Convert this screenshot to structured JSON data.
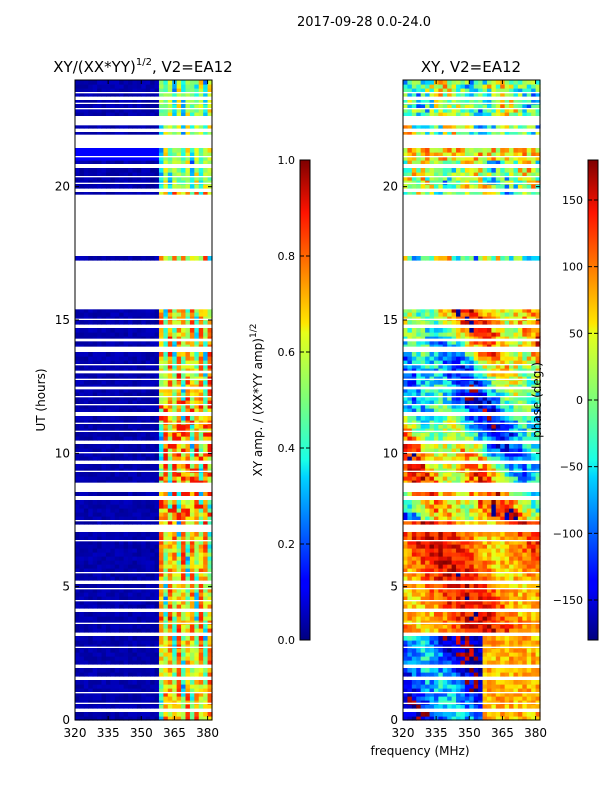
{
  "chart_data": {
    "type": "heatmap",
    "suptitle": "2017-09-28 0.0-24.0",
    "xlabel": "frequency (MHz)",
    "panels": [
      {
        "title": "XY/(XX*YY)^1/2, V2=EA12",
        "title_base": "XY/(XX*YY)",
        "title_sup": "1/2",
        "title_tail": ", V2=EA12",
        "ylabel": "UT (hours)",
        "xlim": [
          320,
          382
        ],
        "ylim": [
          0,
          24
        ],
        "xticks": [
          320,
          335,
          350,
          365,
          380
        ],
        "yticks": [
          0,
          5,
          10,
          15,
          20
        ],
        "quantity": "normalized XY amplitude",
        "colorbar": {
          "label": "XY amp. / (XX*YY amp)^1/2",
          "label_base": "XY amp. / (XX*YY amp)",
          "label_sup": "1/2",
          "vmin": 0.0,
          "vmax": 1.0,
          "ticks": [
            0.0,
            0.2,
            0.4,
            0.6,
            0.8,
            1.0
          ],
          "tick_labels": [
            "0.0",
            "0.2",
            "0.4",
            "0.6",
            "0.8",
            "1.0"
          ]
        }
      },
      {
        "title": "XY, V2=EA12",
        "ylabel": "",
        "xlim": [
          320,
          382
        ],
        "ylim": [
          0,
          24
        ],
        "xticks": [
          320,
          335,
          350,
          365,
          380
        ],
        "yticks": [
          0,
          5,
          10,
          15,
          20
        ],
        "quantity": "XY phase (deg)",
        "colorbar": {
          "label": "phase (deg.)",
          "vmin": -180,
          "vmax": 180,
          "ticks": [
            -150,
            -100,
            -50,
            0,
            50,
            100,
            150
          ],
          "tick_labels": [
            "−150",
            "−100",
            "−50",
            "0",
            "50",
            "100",
            "150"
          ]
        }
      }
    ],
    "flagged_ut_hours": [
      [
        0.3,
        0.4
      ],
      [
        0.6,
        0.65
      ],
      [
        1.0,
        1.05
      ],
      [
        1.55,
        1.6
      ],
      [
        2.0,
        2.05
      ],
      [
        2.7,
        2.75
      ],
      [
        3.2,
        3.25
      ],
      [
        3.6,
        3.65
      ],
      [
        4.1,
        4.15
      ],
      [
        4.45,
        4.5
      ],
      [
        4.9,
        4.95
      ],
      [
        5.15,
        5.2
      ],
      [
        5.5,
        5.55
      ],
      [
        6.7,
        6.75
      ],
      [
        7.1,
        7.3
      ],
      [
        7.45,
        7.5
      ],
      [
        8.3,
        8.4
      ],
      [
        8.6,
        8.9
      ],
      [
        9.3,
        9.35
      ],
      [
        9.65,
        9.7
      ],
      [
        10.0,
        10.05
      ],
      [
        10.4,
        10.45
      ],
      [
        10.8,
        10.85
      ],
      [
        11.1,
        11.15
      ],
      [
        11.45,
        11.55
      ],
      [
        11.8,
        11.85
      ],
      [
        12.1,
        12.15
      ],
      [
        12.4,
        12.5
      ],
      [
        12.75,
        12.8
      ],
      [
        13.0,
        13.1
      ],
      [
        13.3,
        13.35
      ],
      [
        13.85,
        14.0
      ],
      [
        14.2,
        14.3
      ],
      [
        14.75,
        14.8
      ],
      [
        15.0,
        15.05
      ],
      [
        15.4,
        17.2
      ],
      [
        17.45,
        19.7
      ],
      [
        19.85,
        19.9
      ],
      [
        20.1,
        20.15
      ],
      [
        20.35,
        20.4
      ],
      [
        20.75,
        20.85
      ],
      [
        21.1,
        21.15
      ],
      [
        21.5,
        21.95
      ],
      [
        22.05,
        22.15
      ],
      [
        22.3,
        22.65
      ],
      [
        22.9,
        22.95
      ],
      [
        23.1,
        23.15
      ],
      [
        23.3,
        23.35
      ],
      [
        23.5,
        23.55
      ]
    ]
  }
}
